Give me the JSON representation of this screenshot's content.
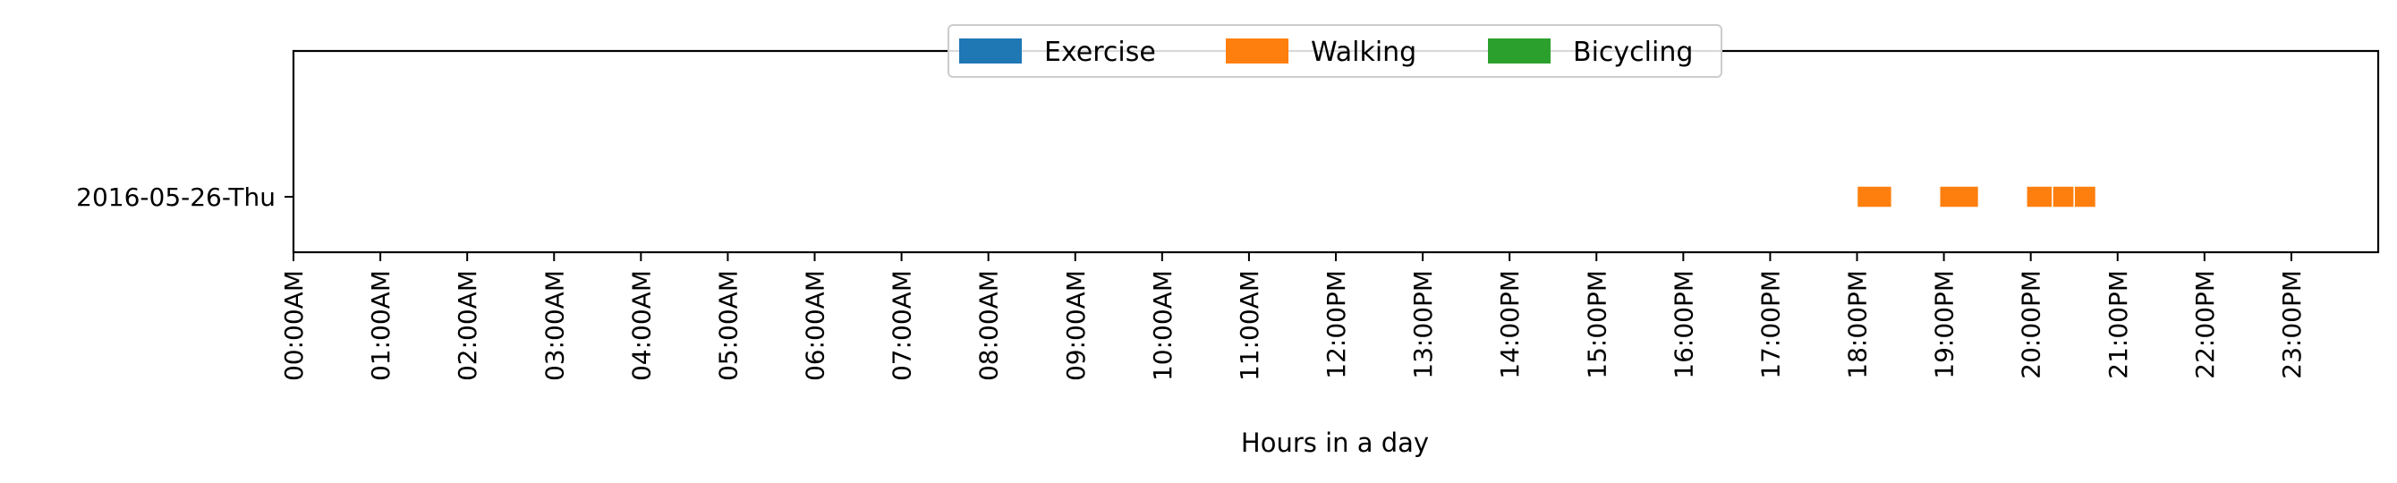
{
  "chart_data": {
    "type": "broken_barh",
    "title": "",
    "xlabel": "Hours in a day",
    "ylabel": "",
    "xlim": [
      0,
      24
    ],
    "x_ticks": [
      {
        "value": 0,
        "label": "00:00AM"
      },
      {
        "value": 1,
        "label": "01:00AM"
      },
      {
        "value": 2,
        "label": "02:00AM"
      },
      {
        "value": 3,
        "label": "03:00AM"
      },
      {
        "value": 4,
        "label": "04:00AM"
      },
      {
        "value": 5,
        "label": "05:00AM"
      },
      {
        "value": 6,
        "label": "06:00AM"
      },
      {
        "value": 7,
        "label": "07:00AM"
      },
      {
        "value": 8,
        "label": "08:00AM"
      },
      {
        "value": 9,
        "label": "09:00AM"
      },
      {
        "value": 10,
        "label": "10:00AM"
      },
      {
        "value": 11,
        "label": "11:00AM"
      },
      {
        "value": 12,
        "label": "12:00PM"
      },
      {
        "value": 13,
        "label": "13:00PM"
      },
      {
        "value": 14,
        "label": "14:00PM"
      },
      {
        "value": 15,
        "label": "15:00PM"
      },
      {
        "value": 16,
        "label": "16:00PM"
      },
      {
        "value": 17,
        "label": "17:00PM"
      },
      {
        "value": 18,
        "label": "18:00PM"
      },
      {
        "value": 19,
        "label": "19:00PM"
      },
      {
        "value": 20,
        "label": "20:00PM"
      },
      {
        "value": 21,
        "label": "21:00PM"
      },
      {
        "value": 22,
        "label": "22:00PM"
      },
      {
        "value": 23,
        "label": "23:00PM"
      }
    ],
    "y_categories": [
      "2016-05-26-Thu"
    ],
    "legend": {
      "placement": "top-center",
      "entries": [
        {
          "name": "Exercise",
          "color": "#1f77b4"
        },
        {
          "name": "Walking",
          "color": "#ff7f0e"
        },
        {
          "name": "Bicycling",
          "color": "#2ca02c"
        }
      ]
    },
    "series": [
      {
        "name": "Exercise",
        "color": "#1f77b4",
        "segments": []
      },
      {
        "name": "Walking",
        "color": "#ff7f0e",
        "segments": [
          {
            "day": "2016-05-26-Thu",
            "start": 18.0,
            "end": 18.4
          },
          {
            "day": "2016-05-26-Thu",
            "start": 18.95,
            "end": 19.4
          },
          {
            "day": "2016-05-26-Thu",
            "start": 19.95,
            "end": 20.25
          },
          {
            "day": "2016-05-26-Thu",
            "start": 20.25,
            "end": 20.5
          },
          {
            "day": "2016-05-26-Thu",
            "start": 20.5,
            "end": 20.75
          }
        ]
      },
      {
        "name": "Bicycling",
        "color": "#2ca02c",
        "segments": []
      }
    ],
    "grid": false
  }
}
